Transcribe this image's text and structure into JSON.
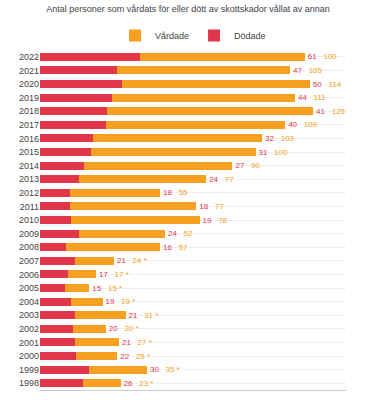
{
  "chart_data": {
    "type": "bar",
    "orientation": "horizontal",
    "stacked": true,
    "title": "Antal personer som vårdats för eller dött av skottskador vållat av annan",
    "categories": [
      "2022",
      "2021",
      "2020",
      "2019",
      "2018",
      "2017",
      "2016",
      "2015",
      "2014",
      "2013",
      "2012",
      "2011",
      "2010",
      "2009",
      "2008",
      "2007",
      "2006",
      "2005",
      "2004",
      "2003",
      "2002",
      "2001",
      "2000",
      "1999",
      "1998"
    ],
    "series": [
      {
        "name": "Dödade",
        "color": "#e0364a",
        "values": [
          61,
          47,
          50,
          44,
          41,
          40,
          32,
          31,
          27,
          24,
          18,
          18,
          19,
          24,
          16,
          21,
          17,
          15,
          19,
          21,
          20,
          21,
          22,
          30,
          26
        ]
      },
      {
        "name": "Vårdade",
        "color": "#f5a020",
        "values": [
          100,
          105,
          114,
          111,
          125,
          109,
          103,
          100,
          90,
          77,
          55,
          77,
          78,
          52,
          57,
          24,
          17,
          15,
          19,
          31,
          20,
          27,
          25,
          35,
          23
        ],
        "value_labels": [
          "100",
          "105",
          "114",
          "111",
          "125",
          "109",
          "103",
          "100",
          "90",
          "77",
          "55",
          "77",
          "78",
          "52",
          "57",
          "24 *",
          "17 *",
          "15 *",
          "19 *",
          "31 *",
          "20 *",
          "27 *",
          "25 *",
          "35 *",
          "23 *"
        ]
      }
    ],
    "xlim": [
      0,
      186
    ],
    "data_labels": true,
    "tick_labels": "y",
    "grid": true,
    "legend": "top"
  }
}
